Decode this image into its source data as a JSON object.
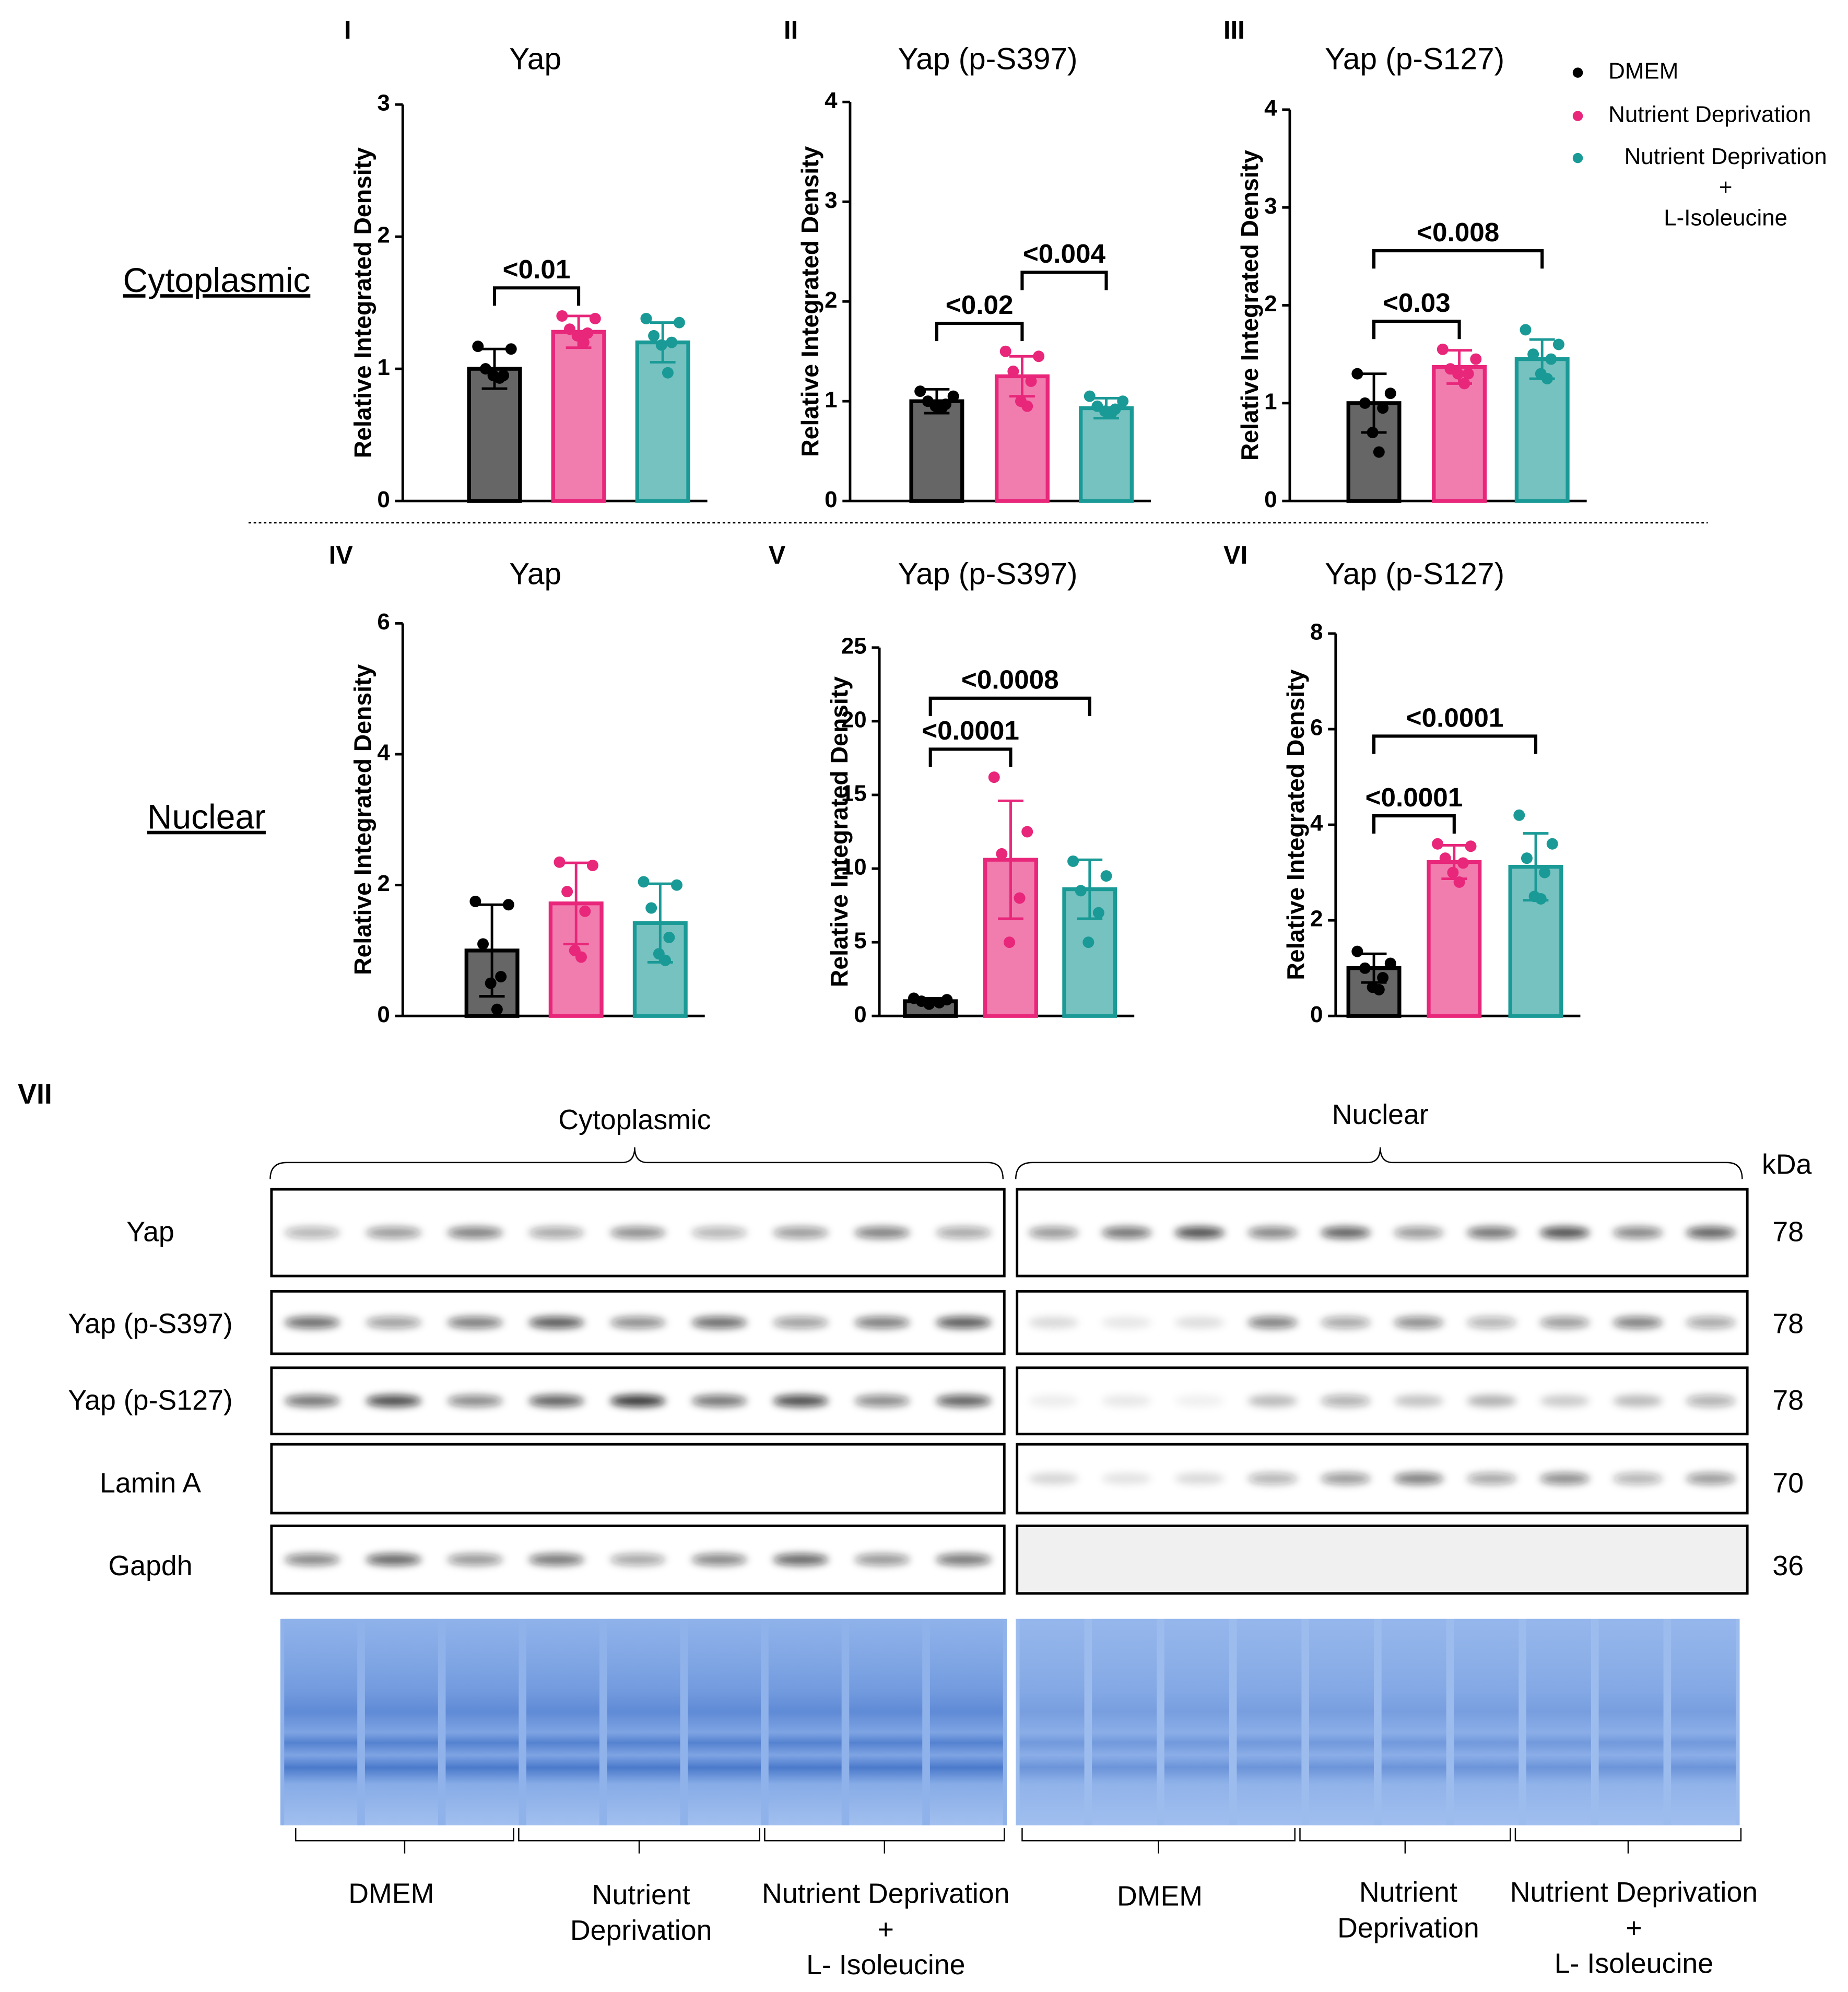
{
  "chart_data": [
    {
      "type": "bar",
      "panel": "I",
      "title": "Yap",
      "ylabel": "Relative Integrated Density",
      "categories": [
        null,
        null,
        null
      ],
      "values": [
        1.0,
        1.28,
        1.2
      ],
      "errors": [
        0.15,
        0.12,
        0.15
      ],
      "points": [
        [
          1.17,
          1.15,
          1.0,
          0.95,
          0.95,
          0.93
        ],
        [
          1.4,
          1.38,
          1.3,
          1.27,
          1.25,
          1.2
        ],
        [
          1.38,
          1.35,
          1.25,
          1.2,
          1.18,
          0.97
        ]
      ],
      "ylim": [
        0,
        3
      ],
      "yticks": [
        0,
        1,
        2,
        3
      ],
      "annotations": [
        {
          "text": "<0.01",
          "groups": [
            0,
            1
          ]
        }
      ]
    },
    {
      "type": "bar",
      "panel": "II",
      "title": "Yap (p-S397)",
      "ylabel": "Relative Integrated Density",
      "categories": [
        null,
        null,
        null
      ],
      "values": [
        1.0,
        1.25,
        0.93
      ],
      "errors": [
        0.12,
        0.2,
        0.1
      ],
      "points": [
        [
          1.1,
          1.05,
          1.0,
          0.97,
          0.95,
          0.93
        ],
        [
          1.5,
          1.45,
          1.3,
          1.2,
          1.0,
          0.95
        ],
        [
          1.05,
          1.0,
          0.95,
          0.92,
          0.9,
          0.88
        ]
      ],
      "ylim": [
        0,
        4
      ],
      "yticks": [
        0,
        1,
        2,
        3,
        4
      ],
      "annotations": [
        {
          "text": "<0.02",
          "groups": [
            0,
            1
          ]
        },
        {
          "text": "<0.004",
          "groups": [
            1,
            2
          ]
        }
      ]
    },
    {
      "type": "bar",
      "panel": "III",
      "title": "Yap (p-S127)",
      "ylabel": "Relative Integrated Density",
      "categories": [
        null,
        null,
        null
      ],
      "values": [
        1.0,
        1.37,
        1.45
      ],
      "errors": [
        0.3,
        0.17,
        0.2
      ],
      "points": [
        [
          1.3,
          1.1,
          1.0,
          0.95,
          0.7,
          0.5
        ],
        [
          1.55,
          1.45,
          1.35,
          1.3,
          1.3,
          1.2
        ],
        [
          1.75,
          1.6,
          1.5,
          1.45,
          1.3,
          1.25
        ]
      ],
      "ylim": [
        0,
        4
      ],
      "yticks": [
        0,
        1,
        2,
        3,
        4
      ],
      "annotations": [
        {
          "text": "<0.03",
          "groups": [
            0,
            1
          ]
        },
        {
          "text": "<0.008",
          "groups": [
            0,
            2
          ]
        }
      ]
    },
    {
      "type": "bar",
      "panel": "IV",
      "title": "Yap",
      "ylabel": "Relative Integrated Density",
      "categories": [
        null,
        null,
        null
      ],
      "values": [
        1.0,
        1.72,
        1.42
      ],
      "errors": [
        0.7,
        0.62,
        0.6
      ],
      "points": [
        [
          1.75,
          1.7,
          1.1,
          0.6,
          0.5,
          0.1
        ],
        [
          2.35,
          2.3,
          1.9,
          1.6,
          1.0,
          0.9
        ],
        [
          2.05,
          2.0,
          1.65,
          1.2,
          0.95,
          0.85
        ]
      ],
      "ylim": [
        0,
        6
      ],
      "yticks": [
        0,
        2,
        4,
        6
      ],
      "annotations": []
    },
    {
      "type": "bar",
      "panel": "V",
      "title": "Yap (p-S397)",
      "ylabel": "Relative Integrated Density",
      "categories": [
        null,
        null,
        null
      ],
      "values": [
        1.0,
        10.6,
        8.6
      ],
      "errors": [
        0.2,
        4.0,
        2.0
      ],
      "points": [
        [
          1.2,
          1.1,
          1.0,
          0.9,
          0.8
        ],
        [
          16.2,
          12.5,
          11.0,
          8.0,
          5.0
        ],
        [
          10.5,
          9.5,
          8.5,
          7.0,
          5.0
        ]
      ],
      "ylim": [
        0,
        25
      ],
      "yticks": [
        0,
        5,
        10,
        15,
        20,
        25
      ],
      "annotations": [
        {
          "text": "<0.0001",
          "groups": [
            0,
            1
          ]
        },
        {
          "text": "<0.0008",
          "groups": [
            0,
            2
          ]
        }
      ]
    },
    {
      "type": "bar",
      "panel": "VI",
      "title": "Yap (p-S127)",
      "ylabel": "Relative Integrated Density",
      "categories": [
        null,
        null,
        null
      ],
      "values": [
        1.0,
        3.22,
        3.12
      ],
      "errors": [
        0.3,
        0.35,
        0.7
      ],
      "points": [
        [
          1.35,
          1.1,
          1.0,
          0.8,
          0.6,
          0.55
        ],
        [
          3.6,
          3.55,
          3.3,
          3.2,
          3.0,
          2.8
        ],
        [
          4.2,
          3.6,
          3.3,
          3.0,
          2.5,
          2.45
        ]
      ],
      "ylim": [
        0,
        8
      ],
      "yticks": [
        0,
        2,
        4,
        6,
        8
      ],
      "annotations": [
        {
          "text": "<0.0001",
          "groups": [
            0,
            1
          ]
        },
        {
          "text": "<0.0001",
          "groups": [
            0,
            2
          ]
        }
      ]
    }
  ],
  "legend": [
    {
      "lines": [
        "DMEM"
      ],
      "color": "#000000"
    },
    {
      "lines": [
        "Nutrient Deprivation"
      ],
      "color": "#e8267a"
    },
    {
      "lines": [
        "Nutrient Deprivation",
        "+",
        "L-Isoleucine"
      ],
      "color": "#1a9a96"
    }
  ],
  "row_labels": [
    "Cytoplasmic",
    "Nuclear"
  ],
  "blot": {
    "panel": "VII",
    "fractions": [
      "Cytoplasmic",
      "Nuclear"
    ],
    "unit": "kDa",
    "proteins": [
      {
        "name": "Yap",
        "kda": 78
      },
      {
        "name": "Yap (p-S397)",
        "kda": 78
      },
      {
        "name": "Yap (p-S127)",
        "kda": 78
      },
      {
        "name": "Lamin A",
        "kda": 70
      },
      {
        "name": "Gapdh",
        "kda": 36
      }
    ],
    "conditions": [
      [
        "DMEM"
      ],
      [
        "Nutrient",
        "Deprivation"
      ],
      [
        "Nutrient Deprivation",
        "+",
        "L- Isoleucine"
      ]
    ]
  }
}
